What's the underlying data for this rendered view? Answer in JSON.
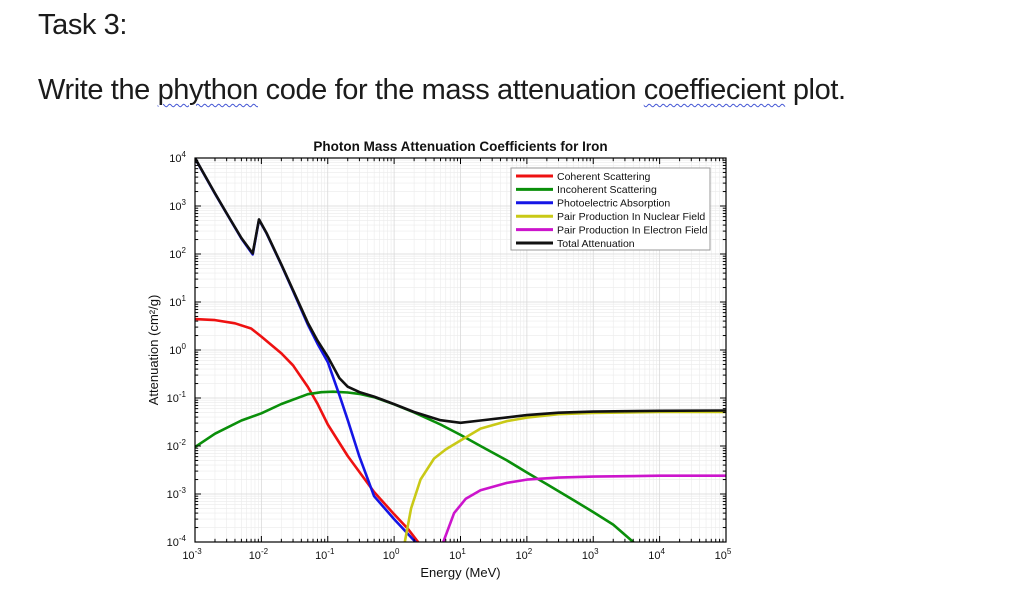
{
  "document": {
    "heading": "Task 3:",
    "sentence_parts": [
      {
        "text": "Write the ",
        "misspelled": false
      },
      {
        "text": "phython",
        "misspelled": true
      },
      {
        "text": " code for the mass attenuation ",
        "misspelled": false
      },
      {
        "text": "coeffiecient",
        "misspelled": true
      },
      {
        "text": " plot.",
        "misspelled": false
      }
    ],
    "text_color": "#1b1b1b",
    "spellcheck_underline_color": "#4255d4"
  },
  "chart_data": {
    "type": "line",
    "title": "Photon Mass Attenuation Coefficients for Iron",
    "xlabel": "Energy (MeV)",
    "ylabel": "Attenuation (cm²/g)",
    "xscale": "log",
    "yscale": "log",
    "xlim": [
      0.001,
      100000
    ],
    "ylim": [
      0.0001,
      10000
    ],
    "grid": true,
    "legend_position": "upper right",
    "axis_color": "#000000",
    "grid_major_color": "#d9d9d9",
    "grid_minor_color": "#ebebeb",
    "series": [
      {
        "name": "Coherent Scattering",
        "color": "#ee1111",
        "x": [
          0.001,
          0.002,
          0.004,
          0.007,
          0.01,
          0.02,
          0.03,
          0.05,
          0.07,
          0.1,
          0.2,
          0.5,
          1.0,
          1.6,
          2.3
        ],
        "y": [
          4.4,
          4.2,
          3.6,
          2.8,
          1.9,
          0.85,
          0.48,
          0.17,
          0.076,
          0.028,
          0.0062,
          0.0011,
          0.00038,
          0.00019,
          0.0001
        ]
      },
      {
        "name": "Incoherent Scattering",
        "color": "#0a8f0a",
        "x": [
          0.001,
          0.002,
          0.005,
          0.01,
          0.02,
          0.05,
          0.08,
          0.12,
          0.2,
          0.3,
          0.5,
          1,
          2,
          5,
          10,
          20,
          50,
          100,
          200,
          500,
          1000,
          2000,
          4000
        ],
        "y": [
          0.0095,
          0.018,
          0.034,
          0.048,
          0.075,
          0.12,
          0.132,
          0.135,
          0.13,
          0.122,
          0.104,
          0.074,
          0.05,
          0.028,
          0.017,
          0.01,
          0.005,
          0.0028,
          0.0016,
          0.00075,
          0.00042,
          0.00023,
          0.0001
        ]
      },
      {
        "name": "Photoelectric Absorption",
        "color": "#1515e6",
        "x": [
          0.001,
          0.002,
          0.005,
          0.0074,
          0.0092,
          0.012,
          0.02,
          0.03,
          0.05,
          0.07,
          0.1,
          0.15,
          0.2,
          0.3,
          0.5,
          1.0,
          2.1
        ],
        "y": [
          9900,
          1800,
          210,
          98,
          515,
          268,
          59,
          17,
          3.4,
          1.35,
          0.56,
          0.115,
          0.035,
          0.006,
          0.0009,
          0.0003,
          0.0001
        ]
      },
      {
        "name": "Pair Production In Nuclear Field",
        "color": "#c9c916",
        "x": [
          1.45,
          1.8,
          2.5,
          4,
          6,
          10,
          20,
          50,
          100,
          300,
          1000,
          10000,
          100000
        ],
        "y": [
          0.0001,
          0.0005,
          0.002,
          0.0055,
          0.0085,
          0.013,
          0.023,
          0.033,
          0.039,
          0.046,
          0.049,
          0.051,
          0.051
        ]
      },
      {
        "name": "Pair Production In Electron Field",
        "color": "#cc14cc",
        "x": [
          5.5,
          8,
          12,
          20,
          50,
          100,
          300,
          1000,
          10000,
          100000
        ],
        "y": [
          0.0001,
          0.0004,
          0.0008,
          0.0012,
          0.0017,
          0.002,
          0.0022,
          0.0023,
          0.0024,
          0.0024
        ]
      },
      {
        "name": "Total Attenuation",
        "color": "#111111",
        "x": [
          0.001,
          0.002,
          0.003,
          0.005,
          0.0074,
          0.0092,
          0.012,
          0.02,
          0.03,
          0.05,
          0.07,
          0.1,
          0.15,
          0.2,
          0.3,
          0.5,
          1,
          2,
          5,
          10,
          20,
          50,
          100,
          300,
          1000,
          10000,
          100000
        ],
        "y": [
          10000,
          1830,
          700,
          215,
          103,
          525,
          272,
          60,
          17.7,
          3.7,
          1.57,
          0.72,
          0.26,
          0.172,
          0.133,
          0.107,
          0.0745,
          0.051,
          0.0345,
          0.0305,
          0.034,
          0.0395,
          0.044,
          0.0495,
          0.052,
          0.054,
          0.055
        ]
      }
    ]
  }
}
